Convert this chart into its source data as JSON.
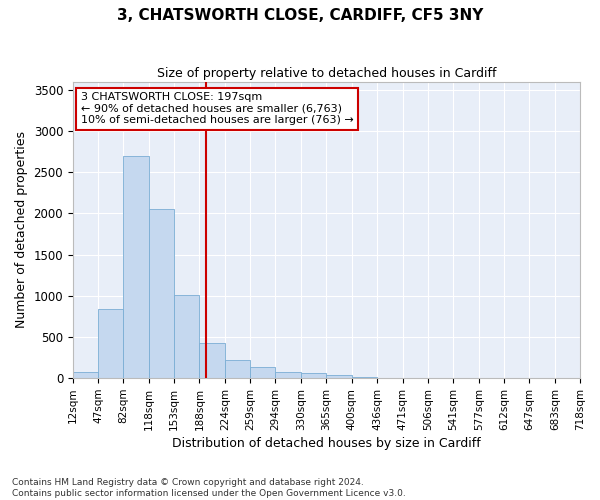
{
  "title": "3, CHATSWORTH CLOSE, CARDIFF, CF5 3NY",
  "subtitle": "Size of property relative to detached houses in Cardiff",
  "xlabel": "Distribution of detached houses by size in Cardiff",
  "ylabel": "Number of detached properties",
  "bar_color": "#c5d8ef",
  "bar_edge_color": "#7aadd4",
  "background_color": "#e8eef8",
  "vline_value": 197,
  "vline_color": "#cc0000",
  "annotation_box_color": "#cc0000",
  "annotation_lines": [
    "3 CHATSWORTH CLOSE: 197sqm",
    "← 90% of detached houses are smaller (6,763)",
    "10% of semi-detached houses are larger (763) →"
  ],
  "bin_edges": [
    12,
    47,
    82,
    118,
    153,
    188,
    224,
    259,
    294,
    330,
    365,
    400,
    436,
    471,
    506,
    541,
    577,
    612,
    647,
    683,
    718
  ],
  "bar_heights": [
    75,
    840,
    2700,
    2060,
    1010,
    430,
    215,
    140,
    80,
    60,
    35,
    15,
    0,
    0,
    0,
    0,
    0,
    0,
    0,
    0
  ],
  "tick_labels": [
    "12sqm",
    "47sqm",
    "82sqm",
    "118sqm",
    "153sqm",
    "188sqm",
    "224sqm",
    "259sqm",
    "294sqm",
    "330sqm",
    "365sqm",
    "400sqm",
    "436sqm",
    "471sqm",
    "506sqm",
    "541sqm",
    "577sqm",
    "612sqm",
    "647sqm",
    "683sqm",
    "718sqm"
  ],
  "ylim": [
    0,
    3600
  ],
  "yticks": [
    0,
    500,
    1000,
    1500,
    2000,
    2500,
    3000,
    3500
  ],
  "footnote1": "Contains HM Land Registry data © Crown copyright and database right 2024.",
  "footnote2": "Contains public sector information licensed under the Open Government Licence v3.0."
}
